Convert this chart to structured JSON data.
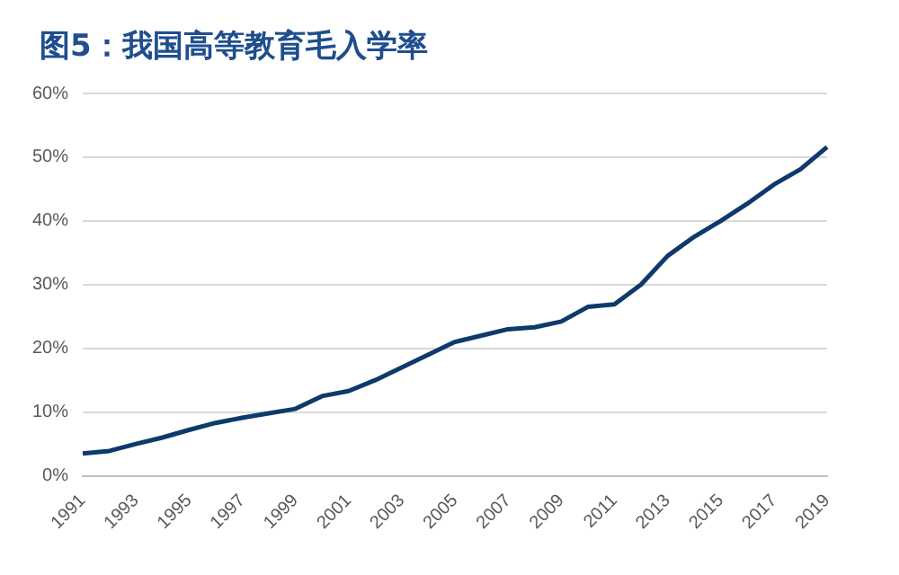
{
  "chart_data": {
    "type": "line",
    "title": "图5：我国高等教育毛入学率",
    "categories": [
      "1991",
      null,
      "1993",
      null,
      "1995",
      null,
      "1997",
      null,
      "1999",
      null,
      "2001",
      null,
      "2003",
      null,
      "2005",
      null,
      "2007",
      null,
      "2009",
      null,
      "2011",
      null,
      "2013",
      null,
      "2015",
      null,
      "2017",
      null,
      "2019"
    ],
    "series": [
      {
        "color": "#0e3a6b",
        "values": [
          3.5,
          3.9,
          5.0,
          6.0,
          7.2,
          8.3,
          9.1,
          9.8,
          10.5,
          12.5,
          13.3,
          15.0,
          17.0,
          19.0,
          21.0,
          22.0,
          23.0,
          23.3,
          24.2,
          26.5,
          26.9,
          30.0,
          34.5,
          37.5,
          40.0,
          42.7,
          45.7,
          48.1,
          51.6
        ]
      }
    ],
    "ylim": [
      0,
      60
    ],
    "yticks": [
      {
        "value": 0,
        "label": "0%"
      },
      {
        "value": 10,
        "label": "10%"
      },
      {
        "value": 20,
        "label": "20%"
      },
      {
        "value": 30,
        "label": "30%"
      },
      {
        "value": 40,
        "label": "40%"
      },
      {
        "value": 50,
        "label": "50%"
      },
      {
        "value": 60,
        "label": "60%"
      }
    ],
    "grid": "y",
    "legend": false,
    "marker": "none",
    "line_style": "solid"
  }
}
